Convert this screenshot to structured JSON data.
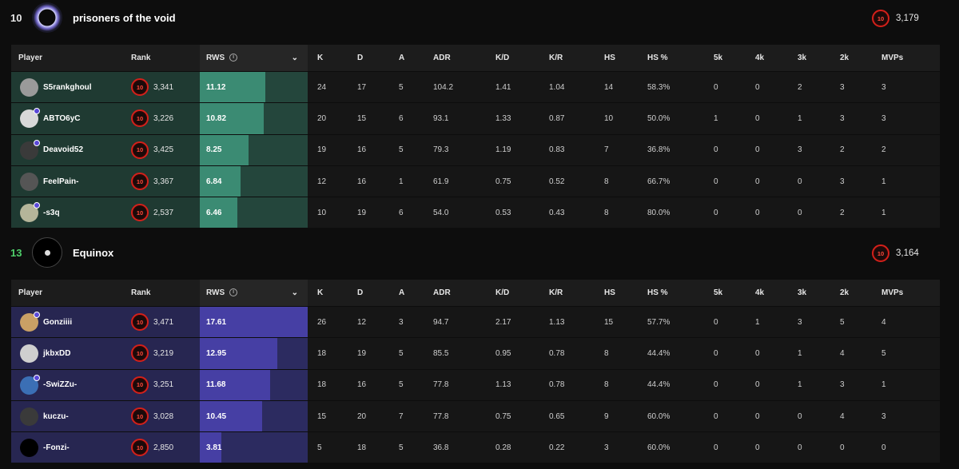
{
  "columns": {
    "player": "Player",
    "rank": "Rank",
    "rws": "RWS",
    "k": "K",
    "d": "D",
    "a": "A",
    "adr": "ADR",
    "kd": "K/D",
    "kr": "K/R",
    "hs": "HS",
    "hs_pct": "HS %",
    "k5": "5k",
    "k4": "4k",
    "k3": "3k",
    "k2": "2k",
    "mvps": "MVPs"
  },
  "teams": [
    {
      "score": "10",
      "score_color": "#e6e6e6",
      "name": "prisoners of the void",
      "level": "10",
      "elo": "3,179",
      "theme": "green",
      "players": [
        {
          "name": "S5rankghoul",
          "level": "10",
          "elo": "3,341",
          "rws": "11.12",
          "rws_ratio": 0.61,
          "k": "24",
          "d": "17",
          "a": "5",
          "adr": "104.2",
          "kd": "1.41",
          "kr": "1.04",
          "hs": "14",
          "hs_pct": "58.3%",
          "k5": "0",
          "k4": "0",
          "k3": "2",
          "k2": "3",
          "mvps": "3",
          "avatar_color": "#9a9a9a",
          "badge": false
        },
        {
          "name": "ABTO6yC",
          "level": "10",
          "elo": "3,226",
          "rws": "10.82",
          "rws_ratio": 0.59,
          "k": "20",
          "d": "15",
          "a": "6",
          "adr": "93.1",
          "kd": "1.33",
          "kr": "0.87",
          "hs": "10",
          "hs_pct": "50.0%",
          "k5": "1",
          "k4": "0",
          "k3": "1",
          "k2": "3",
          "mvps": "3",
          "avatar_color": "#d8d8d8",
          "badge": true
        },
        {
          "name": "Deavoid52",
          "level": "10",
          "elo": "3,425",
          "rws": "8.25",
          "rws_ratio": 0.45,
          "k": "19",
          "d": "16",
          "a": "5",
          "adr": "79.3",
          "kd": "1.19",
          "kr": "0.83",
          "hs": "7",
          "hs_pct": "36.8%",
          "k5": "0",
          "k4": "0",
          "k3": "3",
          "k2": "2",
          "mvps": "2",
          "avatar_color": "#3a3a3a",
          "badge": true
        },
        {
          "name": "FeelPain-",
          "level": "10",
          "elo": "3,367",
          "rws": "6.84",
          "rws_ratio": 0.38,
          "k": "12",
          "d": "16",
          "a": "1",
          "adr": "61.9",
          "kd": "0.75",
          "kr": "0.52",
          "hs": "8",
          "hs_pct": "66.7%",
          "k5": "0",
          "k4": "0",
          "k3": "0",
          "k2": "3",
          "mvps": "1",
          "avatar_color": "#555555",
          "badge": false
        },
        {
          "name": "-s3q",
          "level": "10",
          "elo": "2,537",
          "rws": "6.46",
          "rws_ratio": 0.35,
          "k": "10",
          "d": "19",
          "a": "6",
          "adr": "54.0",
          "kd": "0.53",
          "kr": "0.43",
          "hs": "8",
          "hs_pct": "80.0%",
          "k5": "0",
          "k4": "0",
          "k3": "0",
          "k2": "2",
          "mvps": "1",
          "avatar_color": "#b5b59a",
          "badge": true
        }
      ]
    },
    {
      "score": "13",
      "score_color": "#4fcf6a",
      "name": "Equinox",
      "level": "10",
      "elo": "3,164",
      "theme": "purple",
      "players": [
        {
          "name": "Gonziiii",
          "level": "10",
          "elo": "3,471",
          "rws": "17.61",
          "rws_ratio": 1.0,
          "k": "26",
          "d": "12",
          "a": "3",
          "adr": "94.7",
          "kd": "2.17",
          "kr": "1.13",
          "hs": "15",
          "hs_pct": "57.7%",
          "k5": "0",
          "k4": "1",
          "k3": "3",
          "k2": "5",
          "mvps": "4",
          "avatar_color": "#c9a065",
          "badge": true
        },
        {
          "name": "jkbxDD",
          "level": "10",
          "elo": "3,219",
          "rws": "12.95",
          "rws_ratio": 0.72,
          "k": "18",
          "d": "19",
          "a": "5",
          "adr": "85.5",
          "kd": "0.95",
          "kr": "0.78",
          "hs": "8",
          "hs_pct": "44.4%",
          "k5": "0",
          "k4": "0",
          "k3": "1",
          "k2": "4",
          "mvps": "5",
          "avatar_color": "#cfcfcf",
          "badge": false
        },
        {
          "name": "-SwiZZu-",
          "level": "10",
          "elo": "3,251",
          "rws": "11.68",
          "rws_ratio": 0.65,
          "k": "18",
          "d": "16",
          "a": "5",
          "adr": "77.8",
          "kd": "1.13",
          "kr": "0.78",
          "hs": "8",
          "hs_pct": "44.4%",
          "k5": "0",
          "k4": "0",
          "k3": "1",
          "k2": "3",
          "mvps": "1",
          "avatar_color": "#3b6fb5",
          "badge": true
        },
        {
          "name": "kuczu-",
          "level": "10",
          "elo": "3,028",
          "rws": "10.45",
          "rws_ratio": 0.58,
          "k": "15",
          "d": "20",
          "a": "7",
          "adr": "77.8",
          "kd": "0.75",
          "kr": "0.65",
          "hs": "9",
          "hs_pct": "60.0%",
          "k5": "0",
          "k4": "0",
          "k3": "0",
          "k2": "4",
          "mvps": "3",
          "avatar_color": "#3a3a3a",
          "badge": false
        },
        {
          "name": "-Fonzi-",
          "level": "10",
          "elo": "2,850",
          "rws": "3.81",
          "rws_ratio": 0.2,
          "k": "5",
          "d": "18",
          "a": "5",
          "adr": "36.8",
          "kd": "0.28",
          "kr": "0.22",
          "hs": "3",
          "hs_pct": "60.0%",
          "k5": "0",
          "k4": "0",
          "k3": "0",
          "k2": "0",
          "mvps": "0",
          "avatar_color": "#000000",
          "badge": false
        }
      ]
    }
  ]
}
